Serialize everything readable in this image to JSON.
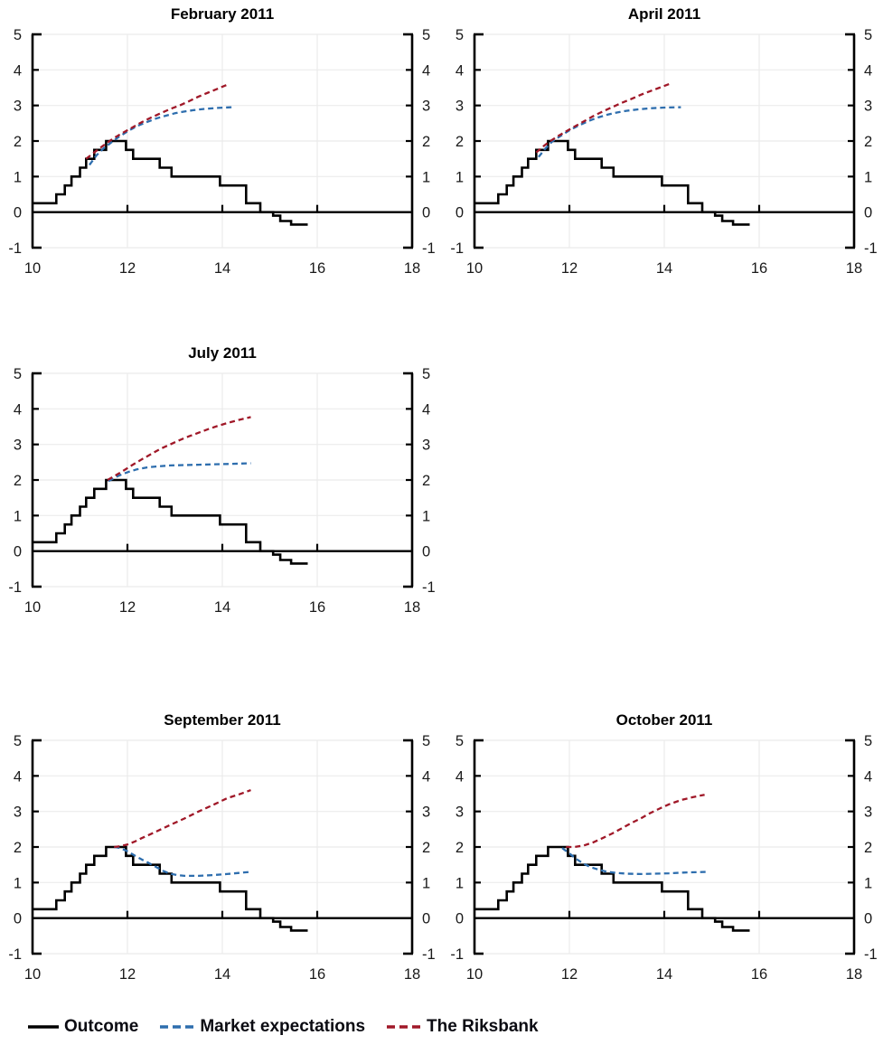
{
  "page": {
    "background": "#ffffff"
  },
  "colors": {
    "outcome": "#000000",
    "market": "#2E6EAE",
    "riksbank": "#A01828",
    "grid": "#EBEBEB",
    "axis": "#000000",
    "tick_label": "#1a1a1a",
    "title": "#000000"
  },
  "axes": {
    "xlim": [
      10,
      18
    ],
    "ylim": [
      -1,
      5
    ],
    "x_ticks": [
      10,
      12,
      14,
      16,
      18
    ],
    "y_ticks": [
      -1,
      0,
      1,
      2,
      3,
      4,
      5
    ],
    "x_tick_labels": [
      "10",
      "12",
      "14",
      "16",
      "18"
    ],
    "y_tick_labels": [
      "-1",
      "0",
      "1",
      "2",
      "3",
      "4",
      "5"
    ],
    "grid": true,
    "dual_y_axis": true
  },
  "legend": {
    "items": [
      {
        "label": "Outcome",
        "color": "#000000",
        "style": "solid"
      },
      {
        "label": "Market expectations",
        "color": "#2E6EAE",
        "style": "dashed"
      },
      {
        "label": "The Riksbank",
        "color": "#A01828",
        "style": "dashed"
      }
    ]
  },
  "outcome_steps": {
    "note": "step series shared by all panels (repo rate outcome, x = year - 2000)",
    "points": [
      [
        10.0,
        0.25
      ],
      [
        10.5,
        0.5
      ],
      [
        10.68,
        0.75
      ],
      [
        10.82,
        1.0
      ],
      [
        11.0,
        1.25
      ],
      [
        11.13,
        1.5
      ],
      [
        11.3,
        1.75
      ],
      [
        11.55,
        2.0
      ],
      [
        11.97,
        1.75
      ],
      [
        12.12,
        1.5
      ],
      [
        12.68,
        1.25
      ],
      [
        12.93,
        1.0
      ],
      [
        13.95,
        0.75
      ],
      [
        14.5,
        0.25
      ],
      [
        14.8,
        0.0
      ],
      [
        15.07,
        -0.1
      ],
      [
        15.22,
        -0.25
      ],
      [
        15.45,
        -0.35
      ]
    ],
    "end_x": 15.8
  },
  "chart_data": [
    {
      "type": "line",
      "title": "February 2011",
      "xlim": [
        10,
        18
      ],
      "ylim": [
        -1,
        5
      ],
      "series": [
        {
          "name": "Outcome",
          "color": "#000000",
          "style": "solid",
          "step": true,
          "use_shared_outcome": true
        },
        {
          "name": "Market expectations",
          "color": "#2E6EAE",
          "style": "dashed",
          "points": [
            [
              11.2,
              1.33
            ],
            [
              11.35,
              1.6
            ],
            [
              11.5,
              1.8
            ],
            [
              11.65,
              1.95
            ],
            [
              11.8,
              2.1
            ],
            [
              12.0,
              2.27
            ],
            [
              12.2,
              2.42
            ],
            [
              12.4,
              2.53
            ],
            [
              12.6,
              2.63
            ],
            [
              12.8,
              2.71
            ],
            [
              13.0,
              2.78
            ],
            [
              13.2,
              2.83
            ],
            [
              13.4,
              2.87
            ],
            [
              13.6,
              2.9
            ],
            [
              13.9,
              2.93
            ],
            [
              14.2,
              2.95
            ]
          ]
        },
        {
          "name": "The Riksbank",
          "color": "#A01828",
          "style": "dashed",
          "points": [
            [
              11.13,
              1.5
            ],
            [
              11.3,
              1.68
            ],
            [
              11.5,
              1.88
            ],
            [
              11.7,
              2.07
            ],
            [
              11.9,
              2.23
            ],
            [
              12.1,
              2.38
            ],
            [
              12.3,
              2.53
            ],
            [
              12.5,
              2.66
            ],
            [
              12.7,
              2.78
            ],
            [
              12.9,
              2.9
            ],
            [
              13.1,
              3.0
            ],
            [
              13.3,
              3.12
            ],
            [
              13.5,
              3.25
            ],
            [
              13.7,
              3.36
            ],
            [
              13.9,
              3.47
            ],
            [
              14.13,
              3.6
            ]
          ]
        }
      ]
    },
    {
      "type": "line",
      "title": "April 2011",
      "xlim": [
        10,
        18
      ],
      "ylim": [
        -1,
        5
      ],
      "series": [
        {
          "name": "Outcome",
          "color": "#000000",
          "style": "solid",
          "step": true,
          "use_shared_outcome": true
        },
        {
          "name": "Market expectations",
          "color": "#2E6EAE",
          "style": "dashed",
          "points": [
            [
              11.35,
              1.55
            ],
            [
              11.5,
              1.8
            ],
            [
              11.65,
              2.0
            ],
            [
              11.8,
              2.13
            ],
            [
              12.0,
              2.3
            ],
            [
              12.2,
              2.44
            ],
            [
              12.4,
              2.56
            ],
            [
              12.6,
              2.66
            ],
            [
              12.8,
              2.74
            ],
            [
              13.0,
              2.8
            ],
            [
              13.2,
              2.85
            ],
            [
              13.45,
              2.89
            ],
            [
              13.7,
              2.92
            ],
            [
              14.0,
              2.94
            ],
            [
              14.35,
              2.95
            ]
          ]
        },
        {
          "name": "The Riksbank",
          "color": "#A01828",
          "style": "dashed",
          "points": [
            [
              11.3,
              1.68
            ],
            [
              11.45,
              1.85
            ],
            [
              11.6,
              2.0
            ],
            [
              11.75,
              2.13
            ],
            [
              11.9,
              2.25
            ],
            [
              12.1,
              2.4
            ],
            [
              12.3,
              2.55
            ],
            [
              12.5,
              2.7
            ],
            [
              12.7,
              2.83
            ],
            [
              12.9,
              2.95
            ],
            [
              13.1,
              3.07
            ],
            [
              13.3,
              3.18
            ],
            [
              13.5,
              3.3
            ],
            [
              13.7,
              3.4
            ],
            [
              13.9,
              3.5
            ],
            [
              14.1,
              3.6
            ]
          ]
        }
      ]
    },
    {
      "type": "line",
      "title": "July 2011",
      "xlim": [
        10,
        18
      ],
      "ylim": [
        -1,
        5
      ],
      "series": [
        {
          "name": "Outcome",
          "color": "#000000",
          "style": "solid",
          "step": true,
          "use_shared_outcome": true
        },
        {
          "name": "Market expectations",
          "color": "#2E6EAE",
          "style": "dashed",
          "points": [
            [
              11.6,
              1.97
            ],
            [
              11.75,
              2.08
            ],
            [
              11.9,
              2.17
            ],
            [
              12.05,
              2.24
            ],
            [
              12.2,
              2.3
            ],
            [
              12.4,
              2.35
            ],
            [
              12.6,
              2.38
            ],
            [
              12.9,
              2.41
            ],
            [
              13.2,
              2.42
            ],
            [
              13.5,
              2.43
            ],
            [
              13.8,
              2.44
            ],
            [
              14.1,
              2.45
            ],
            [
              14.6,
              2.47
            ]
          ]
        },
        {
          "name": "The Riksbank",
          "color": "#A01828",
          "style": "dashed",
          "points": [
            [
              11.58,
              2.0
            ],
            [
              11.75,
              2.13
            ],
            [
              11.9,
              2.25
            ],
            [
              12.1,
              2.42
            ],
            [
              12.3,
              2.58
            ],
            [
              12.5,
              2.73
            ],
            [
              12.7,
              2.88
            ],
            [
              12.9,
              3.0
            ],
            [
              13.1,
              3.12
            ],
            [
              13.3,
              3.23
            ],
            [
              13.5,
              3.33
            ],
            [
              13.7,
              3.43
            ],
            [
              13.9,
              3.52
            ],
            [
              14.1,
              3.6
            ],
            [
              14.35,
              3.69
            ],
            [
              14.6,
              3.77
            ]
          ]
        }
      ]
    },
    {
      "type": "line",
      "title": "September 2011",
      "xlim": [
        10,
        18
      ],
      "ylim": [
        -1,
        5
      ],
      "series": [
        {
          "name": "Outcome",
          "color": "#000000",
          "style": "solid",
          "step": true,
          "use_shared_outcome": true
        },
        {
          "name": "Market expectations",
          "color": "#2E6EAE",
          "style": "dashed",
          "points": [
            [
              11.72,
              2.0
            ],
            [
              11.85,
              1.97
            ],
            [
              12.0,
              1.88
            ],
            [
              12.15,
              1.76
            ],
            [
              12.3,
              1.65
            ],
            [
              12.45,
              1.55
            ],
            [
              12.6,
              1.44
            ],
            [
              12.75,
              1.33
            ],
            [
              12.9,
              1.25
            ],
            [
              13.05,
              1.21
            ],
            [
              13.2,
              1.19
            ],
            [
              13.5,
              1.19
            ],
            [
              13.8,
              1.21
            ],
            [
              14.1,
              1.24
            ],
            [
              14.35,
              1.27
            ],
            [
              14.6,
              1.3
            ]
          ]
        },
        {
          "name": "The Riksbank",
          "color": "#A01828",
          "style": "dashed",
          "points": [
            [
              11.72,
              2.0
            ],
            [
              11.85,
              2.02
            ],
            [
              12.0,
              2.07
            ],
            [
              12.15,
              2.15
            ],
            [
              12.3,
              2.25
            ],
            [
              12.6,
              2.43
            ],
            [
              12.9,
              2.62
            ],
            [
              13.2,
              2.8
            ],
            [
              13.5,
              3.0
            ],
            [
              13.8,
              3.18
            ],
            [
              14.1,
              3.37
            ],
            [
              14.35,
              3.48
            ],
            [
              14.6,
              3.6
            ]
          ]
        }
      ]
    },
    {
      "type": "line",
      "title": "October 2011",
      "xlim": [
        10,
        18
      ],
      "ylim": [
        -1,
        5
      ],
      "series": [
        {
          "name": "Outcome",
          "color": "#000000",
          "style": "solid",
          "step": true,
          "use_shared_outcome": true
        },
        {
          "name": "Market expectations",
          "color": "#2E6EAE",
          "style": "dashed",
          "points": [
            [
              11.85,
              1.97
            ],
            [
              12.0,
              1.82
            ],
            [
              12.15,
              1.66
            ],
            [
              12.3,
              1.53
            ],
            [
              12.45,
              1.43
            ],
            [
              12.6,
              1.37
            ],
            [
              12.8,
              1.3
            ],
            [
              13.0,
              1.27
            ],
            [
              13.2,
              1.25
            ],
            [
              13.5,
              1.24
            ],
            [
              13.8,
              1.25
            ],
            [
              14.1,
              1.26
            ],
            [
              14.4,
              1.28
            ],
            [
              14.9,
              1.3
            ]
          ]
        },
        {
          "name": "The Riksbank",
          "color": "#A01828",
          "style": "dashed",
          "points": [
            [
              11.93,
              2.0
            ],
            [
              12.1,
              2.0
            ],
            [
              12.3,
              2.04
            ],
            [
              12.5,
              2.13
            ],
            [
              12.7,
              2.25
            ],
            [
              12.9,
              2.38
            ],
            [
              13.1,
              2.52
            ],
            [
              13.3,
              2.67
            ],
            [
              13.5,
              2.8
            ],
            [
              13.7,
              2.95
            ],
            [
              13.9,
              3.08
            ],
            [
              14.1,
              3.2
            ],
            [
              14.35,
              3.32
            ],
            [
              14.6,
              3.4
            ],
            [
              14.85,
              3.47
            ]
          ]
        }
      ]
    }
  ]
}
